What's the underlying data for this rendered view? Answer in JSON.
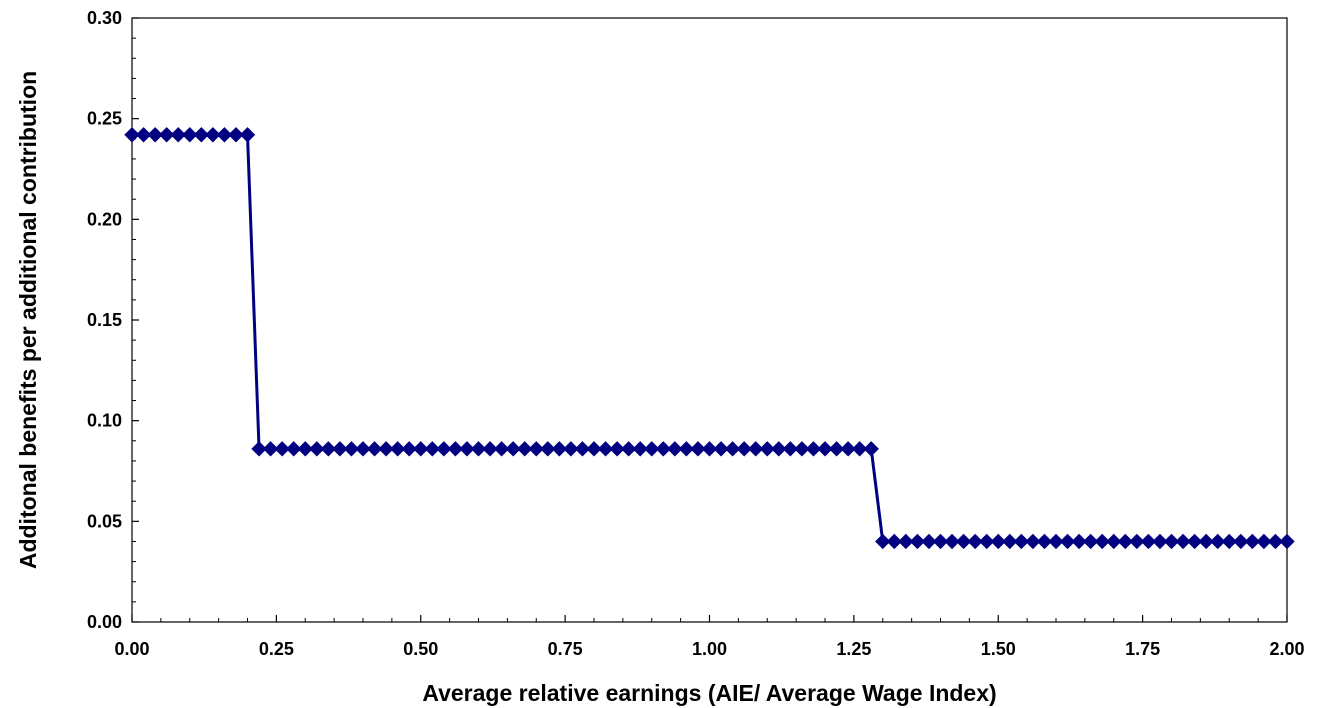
{
  "chart_data": {
    "type": "line",
    "title": "",
    "xlabel": "Average relative earnings (AIE/ Average Wage Index)",
    "ylabel": "Additonal benefits per additional contribution",
    "xlim": [
      0,
      2
    ],
    "ylim": [
      0,
      0.3
    ],
    "x_ticks": [
      "0.00",
      "0.25",
      "0.50",
      "0.75",
      "1.00",
      "1.25",
      "1.50",
      "1.75",
      "2.00"
    ],
    "y_ticks": [
      "0.00",
      "0.05",
      "0.10",
      "0.15",
      "0.20",
      "0.25",
      "0.30"
    ],
    "grid": false,
    "legend": "none",
    "series": [
      {
        "color": "#000080",
        "marker": "diamond",
        "x": [
          0.0,
          0.02,
          0.04,
          0.06,
          0.08,
          0.1,
          0.12,
          0.14,
          0.16,
          0.18,
          0.2,
          0.22,
          0.24,
          0.26,
          0.28,
          0.3,
          0.32,
          0.34,
          0.36,
          0.38,
          0.4,
          0.42,
          0.44,
          0.46,
          0.48,
          0.5,
          0.52,
          0.54,
          0.56,
          0.58,
          0.6,
          0.62,
          0.64,
          0.66,
          0.68,
          0.7,
          0.72,
          0.74,
          0.76,
          0.78,
          0.8,
          0.82,
          0.84,
          0.86,
          0.88,
          0.9,
          0.92,
          0.94,
          0.96,
          0.98,
          1.0,
          1.02,
          1.04,
          1.06,
          1.08,
          1.1,
          1.12,
          1.14,
          1.16,
          1.18,
          1.2,
          1.22,
          1.24,
          1.26,
          1.28,
          1.3,
          1.32,
          1.34,
          1.36,
          1.38,
          1.4,
          1.42,
          1.44,
          1.46,
          1.48,
          1.5,
          1.52,
          1.54,
          1.56,
          1.58,
          1.6,
          1.62,
          1.64,
          1.66,
          1.68,
          1.7,
          1.72,
          1.74,
          1.76,
          1.78,
          1.8,
          1.82,
          1.84,
          1.86,
          1.88,
          1.9,
          1.92,
          1.94,
          1.96,
          1.98,
          2.0
        ],
        "values": [
          0.242,
          0.242,
          0.242,
          0.242,
          0.242,
          0.242,
          0.242,
          0.242,
          0.242,
          0.242,
          0.242,
          0.086,
          0.086,
          0.086,
          0.086,
          0.086,
          0.086,
          0.086,
          0.086,
          0.086,
          0.086,
          0.086,
          0.086,
          0.086,
          0.086,
          0.086,
          0.086,
          0.086,
          0.086,
          0.086,
          0.086,
          0.086,
          0.086,
          0.086,
          0.086,
          0.086,
          0.086,
          0.086,
          0.086,
          0.086,
          0.086,
          0.086,
          0.086,
          0.086,
          0.086,
          0.086,
          0.086,
          0.086,
          0.086,
          0.086,
          0.086,
          0.086,
          0.086,
          0.086,
          0.086,
          0.086,
          0.086,
          0.086,
          0.086,
          0.086,
          0.086,
          0.086,
          0.086,
          0.086,
          0.086,
          0.04,
          0.04,
          0.04,
          0.04,
          0.04,
          0.04,
          0.04,
          0.04,
          0.04,
          0.04,
          0.04,
          0.04,
          0.04,
          0.04,
          0.04,
          0.04,
          0.04,
          0.04,
          0.04,
          0.04,
          0.04,
          0.04,
          0.04,
          0.04,
          0.04,
          0.04,
          0.04,
          0.04,
          0.04,
          0.04,
          0.04,
          0.04,
          0.04,
          0.04,
          0.04,
          0.04
        ]
      }
    ]
  }
}
